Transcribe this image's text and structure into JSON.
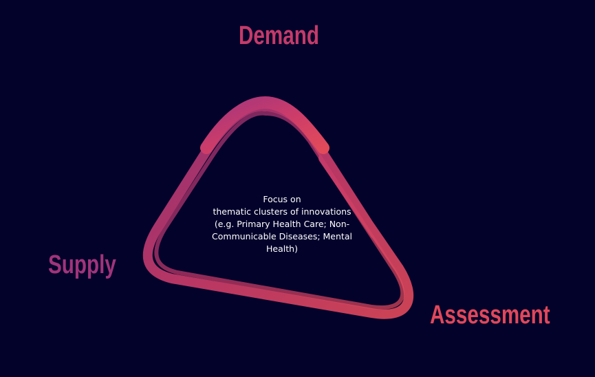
{
  "labels": {
    "demand": "Demand",
    "supply": "Supply",
    "assessment": "Assessment"
  },
  "center": {
    "lines": [
      "Focus on",
      "thematic clusters of innovations",
      "(e.g. Primary Health Care; Non-",
      "Communicable Diseases; Mental",
      "Health)"
    ]
  },
  "colors": {
    "background": "#03022b",
    "demand": "#c43b69",
    "supply": "#a0347a",
    "assessment": "#e0485a",
    "stroke_start": "#a3357c",
    "stroke_end": "#e24a5a"
  }
}
